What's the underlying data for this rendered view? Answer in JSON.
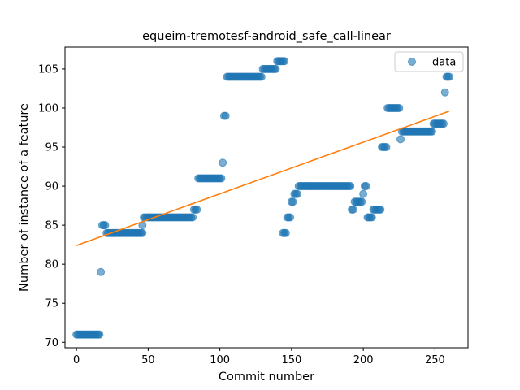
{
  "chart_data": {
    "type": "scatter",
    "title": "equeim-tremotesf-android_safe_call-linear",
    "xlabel": "Commit number",
    "ylabel": "Number of instance of a feature",
    "xlim": [
      -8,
      273
    ],
    "ylim": [
      69.3,
      107.8
    ],
    "x_ticks": [
      0,
      50,
      100,
      150,
      200,
      250
    ],
    "y_ticks": [
      70,
      75,
      80,
      85,
      90,
      95,
      100,
      105
    ],
    "grid": false,
    "legend": {
      "position": "top-right",
      "entries": [
        "data"
      ]
    },
    "colors": {
      "data": "#1f77b4",
      "fit": "#ff7f0e"
    },
    "runs": [
      {
        "from": 0,
        "to": 16,
        "y": 71
      },
      {
        "from": 17,
        "to": 17,
        "y": 79
      },
      {
        "from": 18,
        "to": 20,
        "y": 85
      },
      {
        "from": 21,
        "to": 46,
        "y": 84
      },
      {
        "from": 46,
        "to": 46,
        "y": 85
      },
      {
        "from": 47,
        "to": 81,
        "y": 86
      },
      {
        "from": 82,
        "to": 84,
        "y": 87
      },
      {
        "from": 85,
        "to": 101,
        "y": 91
      },
      {
        "from": 102,
        "to": 102,
        "y": 93
      },
      {
        "from": 103,
        "to": 104,
        "y": 99
      },
      {
        "from": 105,
        "to": 129,
        "y": 104
      },
      {
        "from": 130,
        "to": 139,
        "y": 105
      },
      {
        "from": 140,
        "to": 145,
        "y": 106
      },
      {
        "from": 144,
        "to": 146,
        "y": 84
      },
      {
        "from": 147,
        "to": 149,
        "y": 86
      },
      {
        "from": 150,
        "to": 151,
        "y": 88
      },
      {
        "from": 152,
        "to": 154,
        "y": 89
      },
      {
        "from": 155,
        "to": 191,
        "y": 90
      },
      {
        "from": 192,
        "to": 193,
        "y": 87
      },
      {
        "from": 194,
        "to": 199,
        "y": 88
      },
      {
        "from": 200,
        "to": 200,
        "y": 89
      },
      {
        "from": 201,
        "to": 202,
        "y": 90
      },
      {
        "from": 203,
        "to": 206,
        "y": 86
      },
      {
        "from": 207,
        "to": 212,
        "y": 87
      },
      {
        "from": 213,
        "to": 216,
        "y": 95
      },
      {
        "from": 217,
        "to": 225,
        "y": 100
      },
      {
        "from": 226,
        "to": 226,
        "y": 96
      },
      {
        "from": 227,
        "to": 248,
        "y": 97
      },
      {
        "from": 249,
        "to": 256,
        "y": 98
      },
      {
        "from": 257,
        "to": 257,
        "y": 102
      },
      {
        "from": 258,
        "to": 260,
        "y": 104
      }
    ],
    "fit_line": {
      "x": [
        0,
        260
      ],
      "y": [
        82.4,
        99.6
      ]
    }
  }
}
